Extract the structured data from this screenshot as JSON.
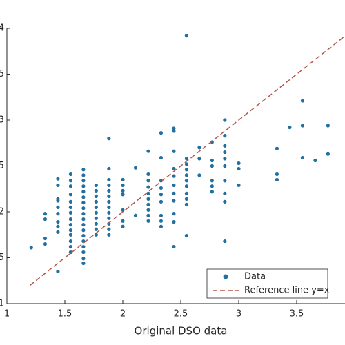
{
  "chart_data": {
    "type": "scatter",
    "xlabel": "Original DSO data",
    "xlim": [
      1,
      4
    ],
    "xticks": [
      1,
      1.5,
      2,
      2.5,
      3,
      3.5
    ],
    "ylim": [
      1,
      4
    ],
    "yticks": [
      1,
      1.5,
      2,
      2.5,
      3,
      3.5,
      4
    ],
    "legend": "lower right",
    "series": [
      {
        "name": "Data",
        "color": "#23709f",
        "mode": "markers",
        "x": [
          1.21,
          1.33,
          1.33,
          1.33,
          1.33,
          1.44,
          1.44,
          1.44,
          1.44,
          1.44,
          1.44,
          1.44,
          1.44,
          1.44,
          1.44,
          1.55,
          1.55,
          1.55,
          1.55,
          1.55,
          1.55,
          1.55,
          1.55,
          1.55,
          1.55,
          1.55,
          1.55,
          1.55,
          1.55,
          1.66,
          1.66,
          1.66,
          1.66,
          1.66,
          1.66,
          1.66,
          1.66,
          1.66,
          1.66,
          1.66,
          1.66,
          1.66,
          1.66,
          1.66,
          1.66,
          1.66,
          1.66,
          1.77,
          1.77,
          1.77,
          1.77,
          1.77,
          1.77,
          1.77,
          1.77,
          1.77,
          1.77,
          1.88,
          1.88,
          1.88,
          1.88,
          1.88,
          1.88,
          1.88,
          1.88,
          1.88,
          1.88,
          1.88,
          1.88,
          1.88,
          2.0,
          2.0,
          2.0,
          2.0,
          2.0,
          2.0,
          2.0,
          2.11,
          2.11,
          2.22,
          2.22,
          2.22,
          2.22,
          2.22,
          2.22,
          2.22,
          2.22,
          2.22,
          2.22,
          2.33,
          2.33,
          2.33,
          2.33,
          2.33,
          2.33,
          2.33,
          2.33,
          2.33,
          2.44,
          2.44,
          2.44,
          2.44,
          2.44,
          2.44,
          2.44,
          2.44,
          2.44,
          2.44,
          2.44,
          2.55,
          2.55,
          2.55,
          2.55,
          2.55,
          2.55,
          2.55,
          2.55,
          2.55,
          2.55,
          2.55,
          2.66,
          2.66,
          2.66,
          2.77,
          2.77,
          2.77,
          2.77,
          2.77,
          2.77,
          2.88,
          2.88,
          2.88,
          2.88,
          2.88,
          2.88,
          2.88,
          2.88,
          2.88,
          2.88,
          3.0,
          3.0,
          3.0,
          3.33,
          3.33,
          3.33,
          3.44,
          3.55,
          3.55,
          3.55,
          3.66,
          3.77,
          3.77
        ],
        "y": [
          1.61,
          1.98,
          1.92,
          1.71,
          1.65,
          2.36,
          2.29,
          2.14,
          2.12,
          2.05,
          1.98,
          1.89,
          1.84,
          1.78,
          1.35,
          2.41,
          2.34,
          2.28,
          2.19,
          2.11,
          2.05,
          1.99,
          1.92,
          1.86,
          1.8,
          1.75,
          1.68,
          1.62,
          1.56,
          2.46,
          2.4,
          2.34,
          2.28,
          2.22,
          2.16,
          2.1,
          2.04,
          1.98,
          1.92,
          1.86,
          1.8,
          1.74,
          1.68,
          1.62,
          1.56,
          1.49,
          1.44,
          2.29,
          2.23,
          2.17,
          2.11,
          2.05,
          1.99,
          1.93,
          1.87,
          1.81,
          1.75,
          2.8,
          2.47,
          2.35,
          2.29,
          2.23,
          2.17,
          2.11,
          2.05,
          1.99,
          1.93,
          1.87,
          1.81,
          1.75,
          2.35,
          2.29,
          2.23,
          2.19,
          2.02,
          1.9,
          1.84,
          2.48,
          1.96,
          2.66,
          2.41,
          2.34,
          2.27,
          2.2,
          2.14,
          2.08,
          2.02,
          1.96,
          1.9,
          2.86,
          2.59,
          2.34,
          2.26,
          2.19,
          2.11,
          1.96,
          1.9,
          1.84,
          2.91,
          2.88,
          2.66,
          2.47,
          2.39,
          2.29,
          2.2,
          2.12,
          1.98,
          1.89,
          1.62,
          3.92,
          2.58,
          2.52,
          2.46,
          2.4,
          2.34,
          2.28,
          2.2,
          2.14,
          2.08,
          1.74,
          2.7,
          2.58,
          2.4,
          2.76,
          2.56,
          2.5,
          2.34,
          2.28,
          2.22,
          3.0,
          2.83,
          2.72,
          2.65,
          2.58,
          2.5,
          2.34,
          2.2,
          2.11,
          1.68,
          2.53,
          2.47,
          2.29,
          2.69,
          2.41,
          2.35,
          2.92,
          3.21,
          2.94,
          2.59,
          2.56,
          2.94,
          2.63
        ]
      },
      {
        "name": "Reference line y=x",
        "color": "#b5564a",
        "mode": "dashed-line",
        "x": [
          1.2,
          3.95
        ],
        "y": [
          1.2,
          3.95
        ]
      }
    ]
  }
}
